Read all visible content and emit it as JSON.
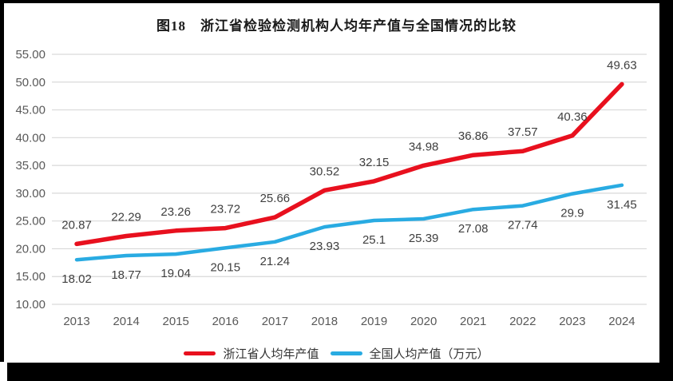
{
  "title": "图18　浙江省检验检测机构人均年产值与全国情况的比较",
  "colors": {
    "background": "#ffffff",
    "frame": "#000000",
    "grid": "#d9d9d9",
    "tick_label": "#595959",
    "data_label": "#3f3f3f",
    "title_color": "#1a1a1a",
    "legend_text": "#333333"
  },
  "chart_data": {
    "type": "line",
    "title": "图18　浙江省检验检测机构人均年产值与全国情况的比较",
    "categories": [
      "2013",
      "2014",
      "2015",
      "2016",
      "2017",
      "2018",
      "2019",
      "2020",
      "2021",
      "2022",
      "2023",
      "2024"
    ],
    "series": [
      {
        "name": "浙江省人均年产值",
        "color": "#e8101e",
        "label_position": "above",
        "values": [
          20.87,
          22.29,
          23.26,
          23.72,
          25.66,
          30.52,
          32.15,
          34.98,
          36.86,
          37.57,
          40.36,
          49.63
        ]
      },
      {
        "name": "全国人均产值（万元）",
        "color": "#29abe2",
        "label_position": "below",
        "values": [
          18.02,
          18.77,
          19.04,
          20.15,
          21.24,
          23.93,
          25.1,
          25.39,
          27.08,
          27.74,
          29.9,
          31.45
        ]
      }
    ],
    "xlabel": "",
    "ylabel": "",
    "ylim": [
      10,
      55
    ],
    "ytick_step": 5,
    "ytick_format": "2-decimals",
    "grid": "horizontal",
    "data_labels": true,
    "legend_position": "bottom"
  }
}
